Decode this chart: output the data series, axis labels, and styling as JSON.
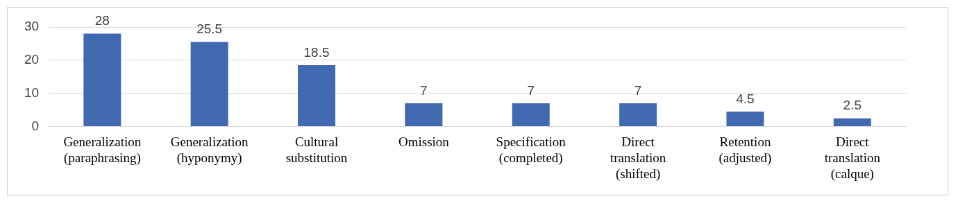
{
  "chart_data": {
    "type": "bar",
    "categories": [
      "Generalization (paraphrasing)",
      "Generalization (hyponymy)",
      "Cultural substitution",
      "Omission",
      "Specification (completed)",
      "Direct translation (shifted)",
      "Retention (adjusted)",
      "Direct translation (calque)"
    ],
    "values": [
      28,
      25.5,
      18.5,
      7,
      7,
      7,
      4.5,
      2.5
    ],
    "color": "#4069b0",
    "ylim": [
      0,
      30
    ],
    "yticks": [
      0,
      10,
      20,
      30
    ],
    "grid": "y",
    "legend": false,
    "data_labels": true
  }
}
